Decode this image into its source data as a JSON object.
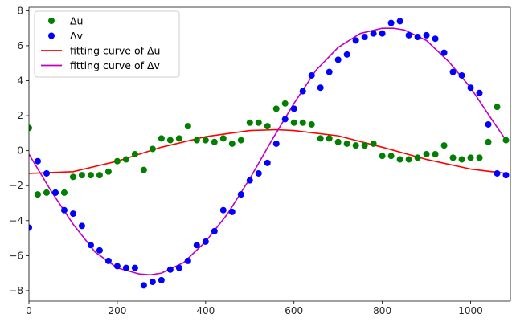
{
  "chart_data": {
    "type": "scatter",
    "title": "",
    "xlabel": "",
    "ylabel": "",
    "xlim": [
      0,
      1090
    ],
    "ylim": [
      -8.6,
      8.2
    ],
    "xticks": [
      0,
      200,
      400,
      600,
      800,
      1000
    ],
    "yticks": [
      -8,
      -6,
      -4,
      -2,
      0,
      2,
      4,
      6,
      8
    ],
    "grid": false,
    "legend_position": "top-left",
    "series": [
      {
        "name": "Δu",
        "kind": "scatter",
        "color": "#008000",
        "x": [
          0,
          20,
          40,
          60,
          80,
          100,
          120,
          140,
          160,
          180,
          200,
          220,
          240,
          260,
          280,
          300,
          320,
          340,
          360,
          380,
          400,
          420,
          440,
          460,
          480,
          500,
          520,
          540,
          560,
          580,
          600,
          620,
          640,
          660,
          680,
          700,
          720,
          740,
          760,
          780,
          800,
          820,
          840,
          860,
          880,
          900,
          920,
          940,
          960,
          980,
          1000,
          1020,
          1040,
          1060,
          1080
        ],
        "y": [
          1.3,
          -2.5,
          -2.4,
          -2.4,
          -2.4,
          -1.5,
          -1.4,
          -1.4,
          -1.4,
          -1.2,
          -0.6,
          -0.5,
          -0.2,
          -1.1,
          0.1,
          0.7,
          0.6,
          0.7,
          1.4,
          0.6,
          0.6,
          0.5,
          0.7,
          0.4,
          0.6,
          1.6,
          1.6,
          1.4,
          2.4,
          2.7,
          1.6,
          1.6,
          1.5,
          0.7,
          0.7,
          0.5,
          0.4,
          0.3,
          0.3,
          0.4,
          -0.3,
          -0.3,
          -0.5,
          -0.5,
          -0.4,
          -0.2,
          -0.2,
          0.3,
          -0.4,
          -0.5,
          -0.4,
          -0.4,
          0.5,
          2.5,
          0.6
        ]
      },
      {
        "name": "Δv",
        "kind": "scatter",
        "color": "#0000ff",
        "x": [
          0,
          20,
          40,
          60,
          80,
          100,
          120,
          140,
          160,
          180,
          200,
          220,
          240,
          260,
          280,
          300,
          320,
          340,
          360,
          380,
          400,
          420,
          440,
          460,
          480,
          500,
          520,
          540,
          560,
          580,
          600,
          620,
          640,
          660,
          680,
          700,
          720,
          740,
          760,
          780,
          800,
          820,
          840,
          860,
          880,
          900,
          920,
          940,
          960,
          980,
          1000,
          1020,
          1040,
          1060,
          1080
        ],
        "y": [
          -4.4,
          -0.6,
          -1.3,
          -2.4,
          -3.4,
          -3.6,
          -4.3,
          -5.4,
          -5.7,
          -6.3,
          -6.6,
          -6.7,
          -6.7,
          -7.7,
          -7.5,
          -7.4,
          -6.8,
          -6.7,
          -6.3,
          -5.4,
          -5.2,
          -4.6,
          -3.4,
          -3.5,
          -2.5,
          -1.7,
          -1.3,
          -0.7,
          0.4,
          1.8,
          2.4,
          3.4,
          4.3,
          3.6,
          4.5,
          5.2,
          5.5,
          6.3,
          6.5,
          6.7,
          6.7,
          7.3,
          7.4,
          6.6,
          6.5,
          6.6,
          6.4,
          5.6,
          4.5,
          4.3,
          3.6,
          3.3,
          1.5,
          -1.3,
          -1.4
        ]
      },
      {
        "name": "fitting curve of Δu",
        "kind": "line",
        "color": "#ff0000",
        "x": [
          0,
          100,
          200,
          300,
          400,
          500,
          560,
          600,
          700,
          800,
          900,
          1000,
          1080
        ],
        "y": [
          -1.3,
          -1.2,
          -0.6,
          0.2,
          0.8,
          1.15,
          1.2,
          1.15,
          0.85,
          0.2,
          -0.5,
          -1.05,
          -1.3
        ]
      },
      {
        "name": "fitting curve of Δv",
        "kind": "line",
        "color": "#bf00bf",
        "x": [
          0,
          50,
          100,
          150,
          200,
          250,
          275,
          300,
          350,
          400,
          450,
          500,
          550,
          600,
          650,
          700,
          750,
          800,
          825,
          850,
          900,
          950,
          1000,
          1050,
          1080
        ],
        "y": [
          -0.2,
          -2.3,
          -4.2,
          -5.8,
          -6.7,
          -7.05,
          -7.1,
          -7.0,
          -6.4,
          -5.2,
          -3.6,
          -1.6,
          0.6,
          2.7,
          4.6,
          5.9,
          6.7,
          7.0,
          7.0,
          6.9,
          6.3,
          5.1,
          3.6,
          1.7,
          0.6
        ]
      }
    ]
  }
}
